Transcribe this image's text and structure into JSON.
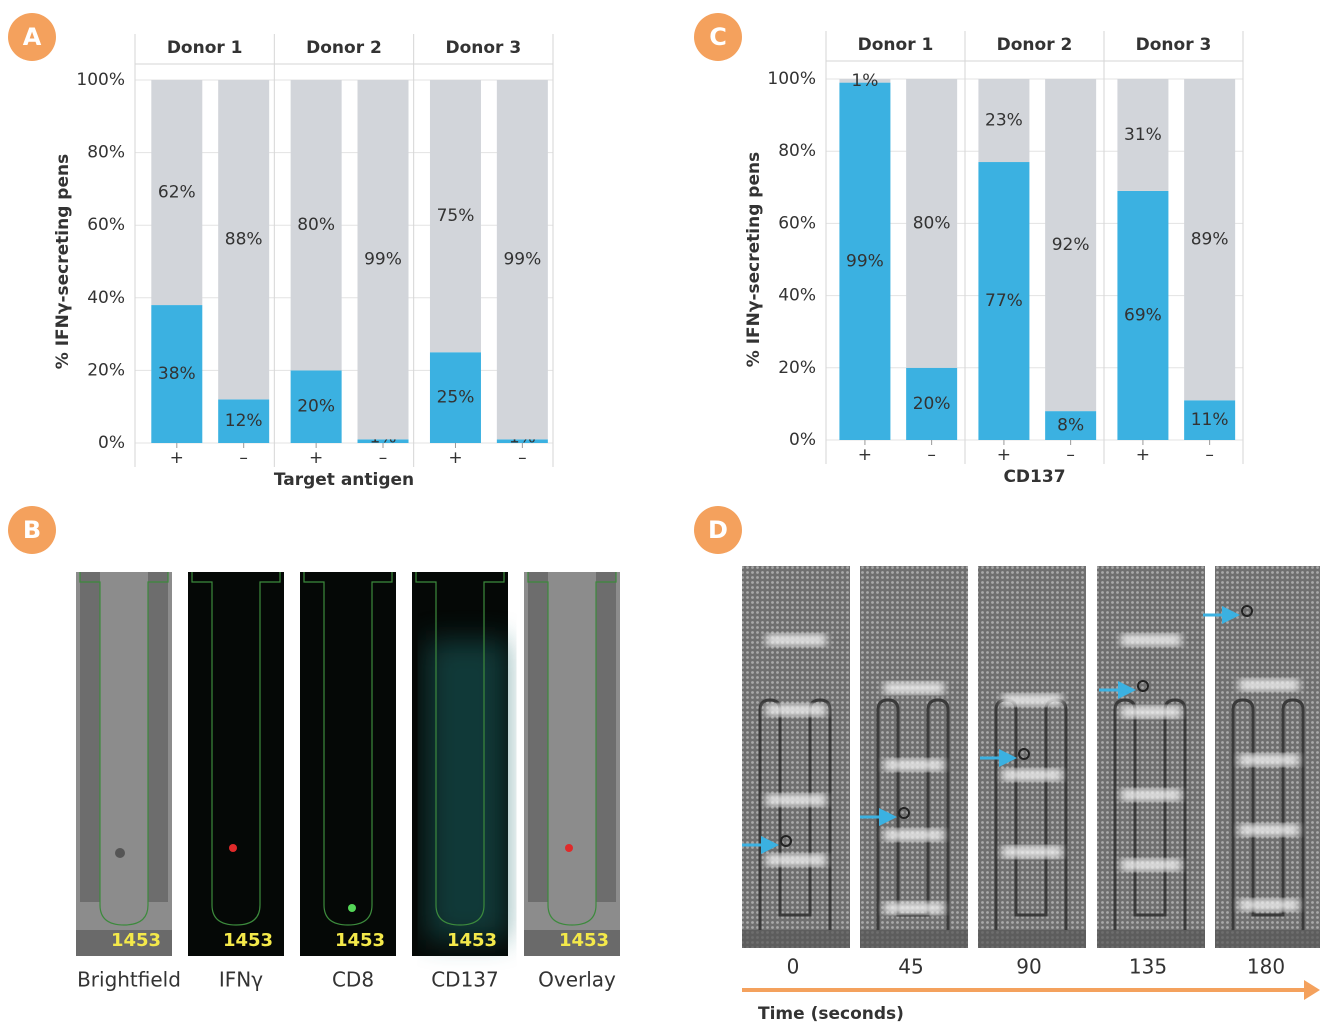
{
  "panel_labels": [
    "A",
    "B",
    "C",
    "D"
  ],
  "chart_data": [
    {
      "type": "bar",
      "stacked": true,
      "groups": [
        "Donor 1",
        "Donor 2",
        "Donor 3"
      ],
      "categories": [
        "+",
        "–",
        "+",
        "–",
        "+",
        "–"
      ],
      "xlabel": "Target antigen",
      "ylabel": "% IFNγ-secreting pens",
      "ylim": [
        0,
        100
      ],
      "yticks": [
        {
          "value": 0,
          "label": "0%"
        },
        {
          "value": 20,
          "label": "20%"
        },
        {
          "value": 40,
          "label": "40%"
        },
        {
          "value": 60,
          "label": "60%"
        },
        {
          "value": 80,
          "label": "80%"
        },
        {
          "value": 100,
          "label": "100%"
        }
      ],
      "grid": true,
      "series": [
        {
          "color": "#3bb1e1",
          "values": [
            38,
            12,
            20,
            1,
            25,
            1
          ],
          "value_labels": [
            "38%",
            "12%",
            "20%",
            "1%",
            "25%",
            "1%"
          ]
        },
        {
          "color": "#d2d5da",
          "values": [
            62,
            88,
            80,
            99,
            75,
            99
          ],
          "value_labels": [
            "62%",
            "88%",
            "80%",
            "99%",
            "75%",
            "99%"
          ]
        }
      ]
    },
    {
      "type": "bar",
      "stacked": true,
      "groups": [
        "Donor 1",
        "Donor 2",
        "Donor 3"
      ],
      "categories": [
        "+",
        "–",
        "+",
        "–",
        "+",
        "–"
      ],
      "xlabel": "CD137",
      "ylabel": "% IFNγ-secreting pens",
      "ylim": [
        0,
        100
      ],
      "yticks": [
        {
          "value": 0,
          "label": "0%"
        },
        {
          "value": 20,
          "label": "20%"
        },
        {
          "value": 40,
          "label": "40%"
        },
        {
          "value": 60,
          "label": "60%"
        },
        {
          "value": 80,
          "label": "80%"
        },
        {
          "value": 100,
          "label": "100%"
        }
      ],
      "grid": true,
      "series": [
        {
          "color": "#3bb1e1",
          "values": [
            99,
            20,
            77,
            8,
            69,
            11
          ],
          "value_labels": [
            "99%",
            "20%",
            "77%",
            "8%",
            "69%",
            "11%"
          ]
        },
        {
          "color": "#d2d5da",
          "values": [
            1,
            80,
            23,
            92,
            31,
            89
          ],
          "value_labels": [
            "1%",
            "80%",
            "23%",
            "92%",
            "31%",
            "89%"
          ]
        }
      ]
    }
  ],
  "panel_b": {
    "channels": [
      "Brightfield",
      "IFNγ",
      "CD8",
      "CD137",
      "Overlay"
    ],
    "pen_id": "1453"
  },
  "panel_d": {
    "times": [
      0,
      45,
      90,
      135,
      180
    ],
    "axis_label": "Time (seconds)"
  }
}
